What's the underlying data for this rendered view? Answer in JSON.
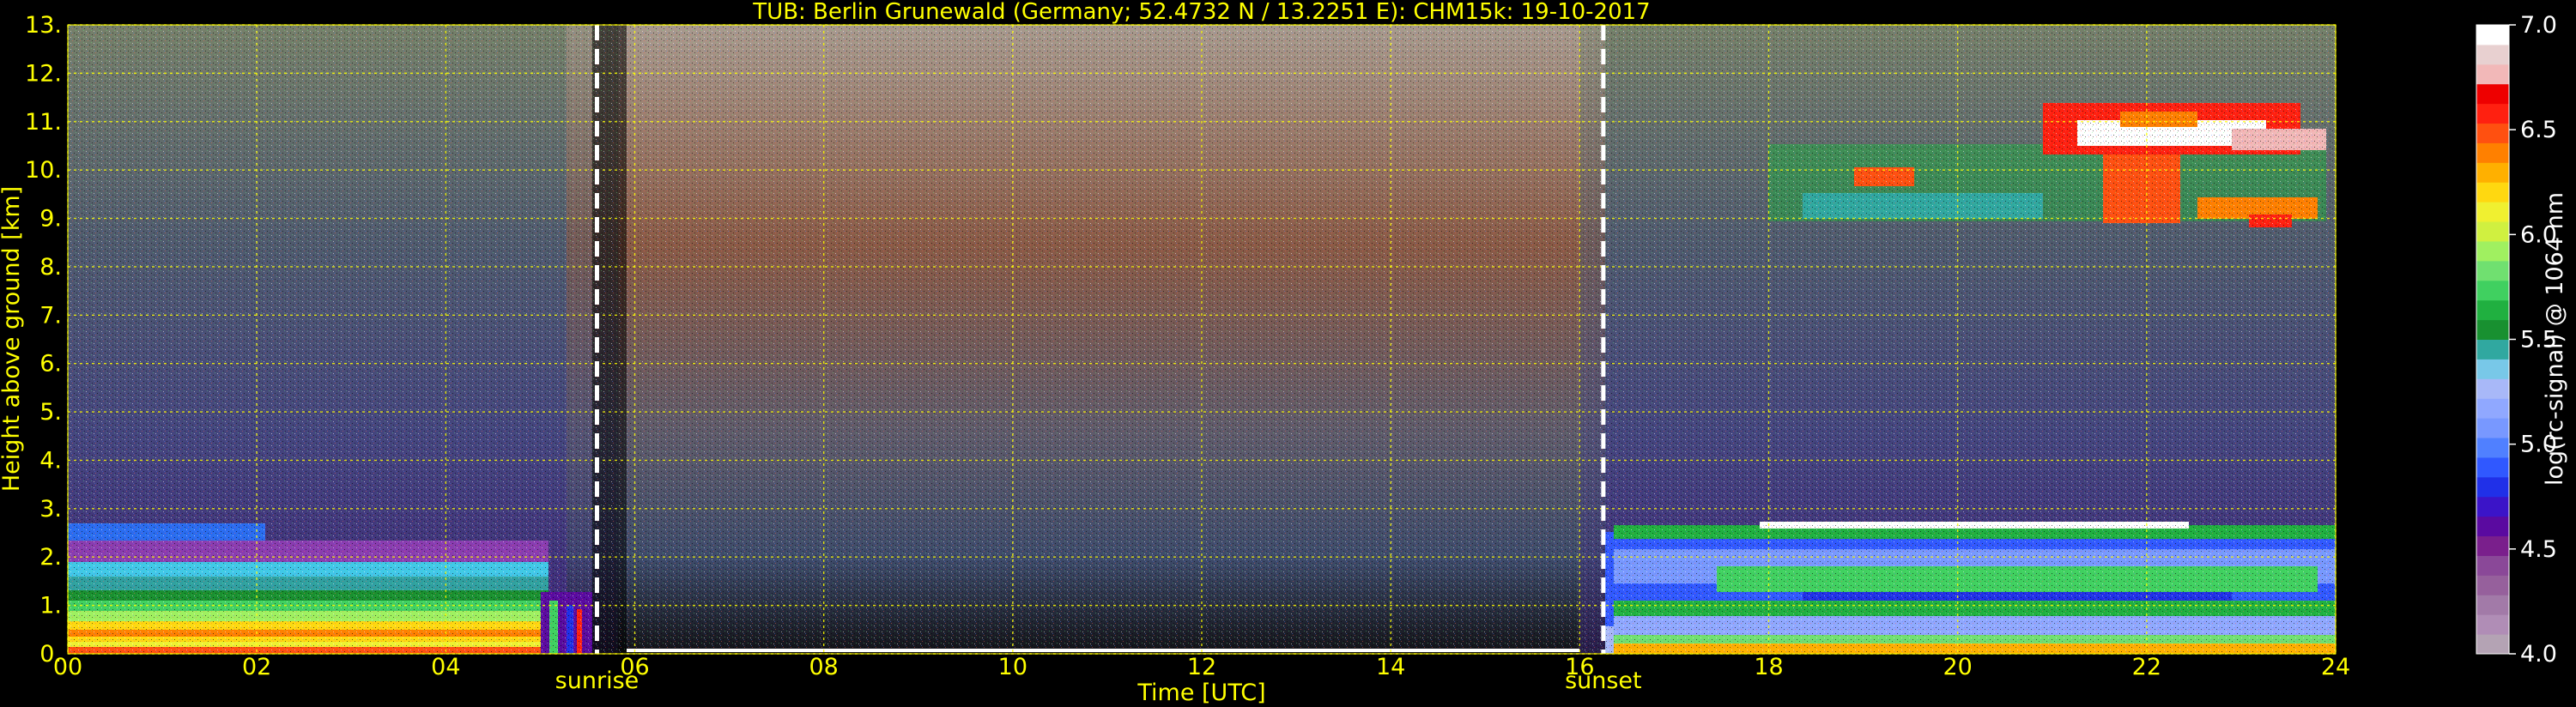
{
  "chart_data": {
    "type": "heatmap",
    "title": "TUB: Berlin Grunewald (Germany; 52.4732 N / 13.2251 E):    CHM15k: 19-10-2017",
    "xlabel": "Time [UTC]",
    "ylabel": "Height above ground [km]",
    "xlim": [
      0,
      24
    ],
    "ylim": [
      0,
      13
    ],
    "x_ticks": [
      "00",
      "02",
      "04",
      "06",
      "08",
      "10",
      "12",
      "14",
      "16",
      "18",
      "20",
      "22",
      "24"
    ],
    "y_ticks": [
      "0.",
      "1.",
      "2.",
      "3.",
      "4.",
      "5.",
      "6.",
      "7.",
      "8.",
      "9.",
      "10.",
      "11.",
      "12.",
      "13."
    ],
    "grid": true,
    "markers": [
      {
        "label": "sunrise",
        "x": 5.6
      },
      {
        "label": "sunset",
        "x": 16.25
      }
    ],
    "colorbar": {
      "label": "log(rc-signal) @ 1064 nm",
      "range": [
        4.0,
        7.0
      ],
      "ticks": [
        "4.0",
        "4.5",
        "5.0",
        "5.5",
        "6.0",
        "6.5",
        "7.0"
      ],
      "colors": [
        "#b4a3b4",
        "#b08db6",
        "#a27aa8",
        "#96609c",
        "#8a4898",
        "#7a1f8c",
        "#5a0aa0",
        "#3b14c8",
        "#2030e8",
        "#3058ff",
        "#5080ff",
        "#7898ff",
        "#90a8ff",
        "#a8b8f8",
        "#78c8e8",
        "#30a8a0",
        "#189030",
        "#20b040",
        "#40d060",
        "#70e070",
        "#a0f060",
        "#d0f040",
        "#f0f030",
        "#ffd810",
        "#ffb000",
        "#ff8000",
        "#ff5010",
        "#ff2010",
        "#ee0000",
        "#f2b8b8",
        "#e8d0d0",
        "#ffffff"
      ]
    },
    "regions": [
      {
        "name": "night boundary layer",
        "x": [
          0,
          5.1
        ],
        "y": [
          0,
          2.4
        ]
      },
      {
        "name": "cirrus cloud",
        "x": [
          18.0,
          23.8
        ],
        "y": [
          8.6,
          11.3
        ]
      },
      {
        "name": "evening boundary layer",
        "x": [
          16.3,
          24
        ],
        "y": [
          0,
          2.8
        ]
      }
    ]
  },
  "colors": {
    "text": "#ffff00",
    "grid": "#ffff00",
    "marker": "#ffffff",
    "background": "#000000"
  }
}
